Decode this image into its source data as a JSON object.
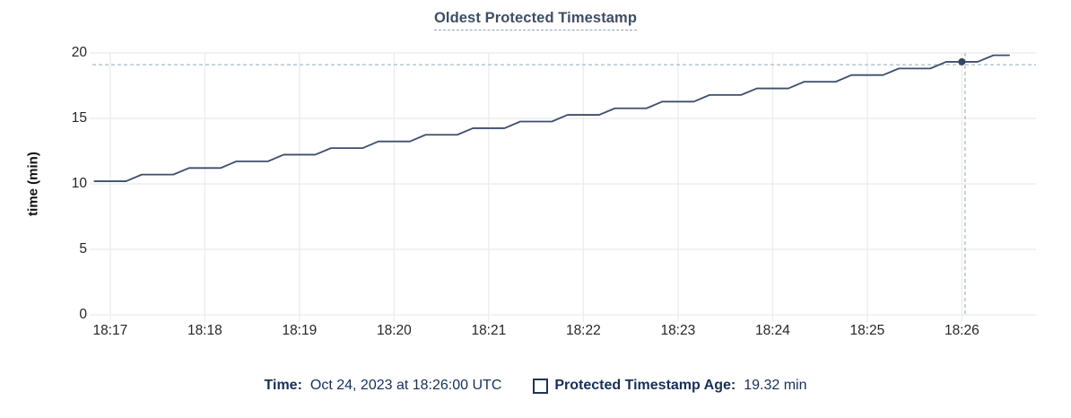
{
  "chart": {
    "title": "Oldest Protected Timestamp",
    "y_axis": {
      "title": "time (min)",
      "ticks": [
        0,
        5,
        10,
        15,
        20
      ],
      "range": [
        0,
        20
      ]
    },
    "x_axis": {
      "ticks": [
        "18:17",
        "18:18",
        "18:19",
        "18:20",
        "18:21",
        "18:22",
        "18:23",
        "18:24",
        "18:25",
        "18:26"
      ],
      "range": [
        "18:16:47",
        "18:26:47"
      ]
    }
  },
  "legend": {
    "time_label": "Time:",
    "time_value": "Oct 24, 2023 at 18:26:00 UTC",
    "series_label": "Protected Timestamp Age:",
    "series_value": "19.32 min"
  },
  "cursor": {
    "time": "18:26:02",
    "value": 19.1,
    "point": {
      "time": "18:26:00",
      "value": 19.32
    }
  },
  "colors": {
    "line": "#3d4e6e",
    "point": "#34465f",
    "grid": "#ededee",
    "cursor": "#a9bac4",
    "title": "#3e4e64",
    "legend_text": "#17305a",
    "tick_text": "#262626"
  },
  "chart_data": {
    "type": "line",
    "title": "Oldest Protected Timestamp",
    "xlabel": "",
    "ylabel": "time (min)",
    "ylim": [
      0,
      20
    ],
    "x_range": [
      "18:16:47",
      "18:26:47"
    ],
    "grid": true,
    "legend_position": "bottom",
    "x": [
      "18:16:50",
      "18:17:00",
      "18:17:10",
      "18:17:20",
      "18:17:30",
      "18:17:40",
      "18:17:50",
      "18:18:00",
      "18:18:10",
      "18:18:20",
      "18:18:30",
      "18:18:40",
      "18:18:50",
      "18:19:00",
      "18:19:10",
      "18:19:20",
      "18:19:30",
      "18:19:40",
      "18:19:50",
      "18:20:00",
      "18:20:10",
      "18:20:20",
      "18:20:30",
      "18:20:40",
      "18:20:50",
      "18:21:00",
      "18:21:10",
      "18:21:20",
      "18:21:30",
      "18:21:40",
      "18:21:50",
      "18:22:00",
      "18:22:10",
      "18:22:20",
      "18:22:30",
      "18:22:40",
      "18:22:50",
      "18:23:00",
      "18:23:10",
      "18:23:20",
      "18:23:30",
      "18:23:40",
      "18:23:50",
      "18:24:00",
      "18:24:10",
      "18:24:20",
      "18:24:30",
      "18:24:40",
      "18:24:50",
      "18:25:00",
      "18:25:10",
      "18:25:20",
      "18:25:30",
      "18:25:40",
      "18:25:50",
      "18:26:00",
      "18:26:10",
      "18:26:20",
      "18:26:30"
    ],
    "series": [
      {
        "name": "Protected Timestamp Age",
        "values": [
          10.2,
          10.2,
          10.2,
          10.71,
          10.71,
          10.71,
          11.21,
          11.21,
          11.21,
          11.72,
          11.72,
          11.72,
          12.23,
          12.23,
          12.23,
          12.73,
          12.73,
          12.73,
          13.24,
          13.24,
          13.24,
          13.75,
          13.75,
          13.75,
          14.25,
          14.25,
          14.25,
          14.76,
          14.76,
          14.76,
          15.27,
          15.27,
          15.27,
          15.77,
          15.77,
          15.77,
          16.28,
          16.28,
          16.28,
          16.79,
          16.79,
          16.79,
          17.29,
          17.29,
          17.29,
          17.8,
          17.8,
          17.8,
          18.31,
          18.31,
          18.31,
          18.81,
          18.81,
          18.81,
          19.32,
          19.32,
          19.32,
          19.82,
          19.82
        ]
      }
    ]
  }
}
